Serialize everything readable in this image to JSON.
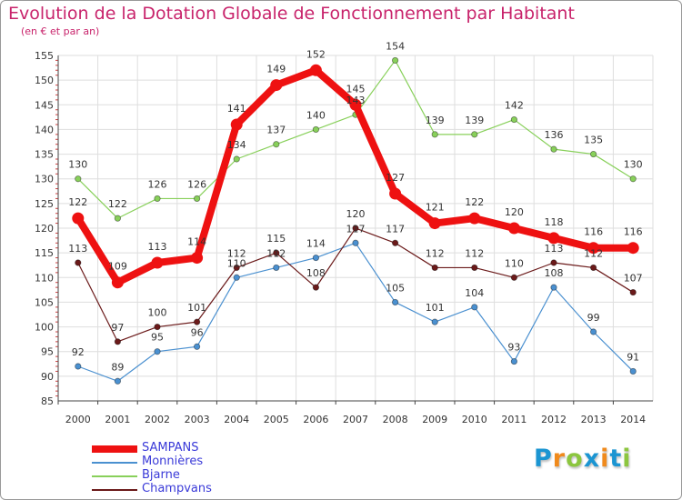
{
  "colors": {
    "title": "#c8236b",
    "grid": "#dedede",
    "axis": "#444444",
    "tick_label": "#333333",
    "legend_text": "#3a3ad8"
  },
  "chart_data": {
    "type": "line",
    "title": "Evolution de la Dotation Globale de Fonctionnement par Habitant",
    "subtitle": "(en € et par an)",
    "xlabel": "",
    "ylabel": "",
    "x": [
      "2000",
      "2001",
      "2002",
      "2003",
      "2004",
      "2005",
      "2006",
      "2007",
      "2008",
      "2009",
      "2010",
      "2011",
      "2012",
      "2013",
      "2014"
    ],
    "ylim": [
      85,
      155
    ],
    "yticks": [
      85,
      90,
      95,
      100,
      105,
      110,
      115,
      120,
      125,
      130,
      135,
      140,
      145,
      150,
      155
    ],
    "grid": true,
    "legend_position": "bottom-left",
    "series": [
      {
        "name": "SAMPANS",
        "color": "#ee1111",
        "emphasis": true,
        "values": [
          122,
          109,
          113,
          114,
          141,
          149,
          152,
          145,
          127,
          121,
          122,
          120,
          118,
          116,
          116
        ]
      },
      {
        "name": "Monnières",
        "color": "#4a90d0",
        "emphasis": false,
        "values": [
          92,
          89,
          95,
          96,
          110,
          112,
          114,
          117,
          105,
          101,
          104,
          93,
          108,
          99,
          91
        ]
      },
      {
        "name": "Bjarne",
        "color": "#88d05a",
        "emphasis": false,
        "values": [
          130,
          122,
          126,
          126,
          134,
          137,
          140,
          143,
          154,
          139,
          139,
          142,
          136,
          135,
          130
        ]
      },
      {
        "name": "Champvans",
        "color": "#6b1a1a",
        "emphasis": false,
        "values": [
          113,
          97,
          100,
          101,
          112,
          115,
          108,
          120,
          117,
          112,
          112,
          110,
          113,
          112,
          107
        ]
      }
    ]
  },
  "logo": {
    "text": "Proxiti",
    "letters": [
      {
        "ch": "P",
        "color": "#1b95d2"
      },
      {
        "ch": "r",
        "color": "#f08a1c"
      },
      {
        "ch": "o",
        "color": "#8cc63f"
      },
      {
        "ch": "x",
        "color": "#1b95d2"
      },
      {
        "ch": "i",
        "color": "#f08a1c"
      },
      {
        "ch": "t",
        "color": "#1b95d2"
      },
      {
        "ch": "i",
        "color": "#8cc63f"
      }
    ]
  }
}
